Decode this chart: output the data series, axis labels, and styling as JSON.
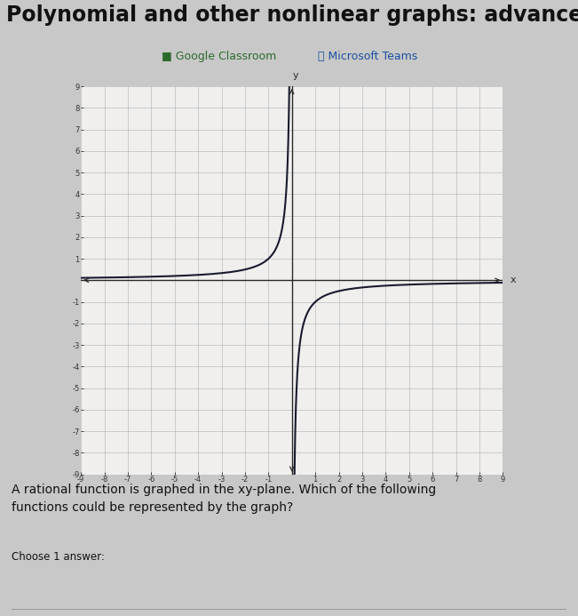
{
  "title": "Polynomial and other nonlinear graphs: advanced",
  "subtitle_left": "Google Classroom",
  "subtitle_right": "Microsoft Teams",
  "question": "A rational function is graphed in the xy-plane. Which of the following\nfunctions could be represented by the graph?",
  "choose_text": "Choose 1 answer:",
  "xmin": -9,
  "xmax": 9,
  "ymin": -9,
  "ymax": 9,
  "background_color": "#c8c8c8",
  "graph_bg_color": "#f0efee",
  "grid_color": "#b0b0b0",
  "axis_color": "#2a2a2a",
  "curve_color": "#1a1a2e",
  "curve_linewidth": 1.5,
  "title_fontsize": 17,
  "subtitle_fontsize": 9,
  "tick_fontsize": 6,
  "label_fontsize": 8
}
